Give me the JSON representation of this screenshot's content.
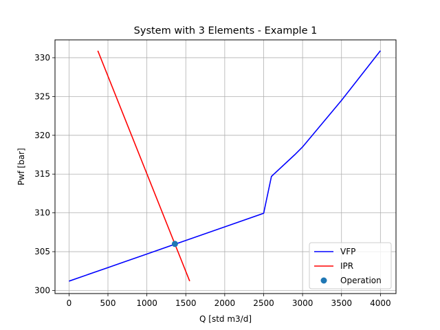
{
  "chart_data": {
    "type": "line",
    "title": "System with 3 Elements - Example 1",
    "xlabel": "Q [std m3/d]",
    "ylabel": "Pwf [bar]",
    "xlim": [
      -180,
      4200
    ],
    "ylim": [
      299.6,
      332.3
    ],
    "xticks": [
      0,
      500,
      1000,
      1500,
      2000,
      2500,
      3000,
      3500,
      4000
    ],
    "yticks": [
      300,
      305,
      310,
      315,
      320,
      325,
      330
    ],
    "grid": true,
    "legend_position": "lower-right",
    "series": [
      {
        "name": "VFP",
        "kind": "line",
        "color": "#0000ff",
        "x": [
          0,
          500,
          1000,
          1500,
          2000,
          2500,
          2600,
          2900,
          3000,
          3500,
          4000
        ],
        "y": [
          301.2,
          302.95,
          304.7,
          306.45,
          308.2,
          309.95,
          314.7,
          317.5,
          318.5,
          324.5,
          330.9
        ]
      },
      {
        "name": "IPR",
        "kind": "line",
        "color": "#ff0000",
        "x": [
          370,
          1550
        ],
        "y": [
          330.9,
          301.2
        ]
      },
      {
        "name": "Operation",
        "kind": "marker",
        "color": "#1f77b4",
        "x": [
          1360
        ],
        "y": [
          306.0
        ]
      }
    ]
  }
}
